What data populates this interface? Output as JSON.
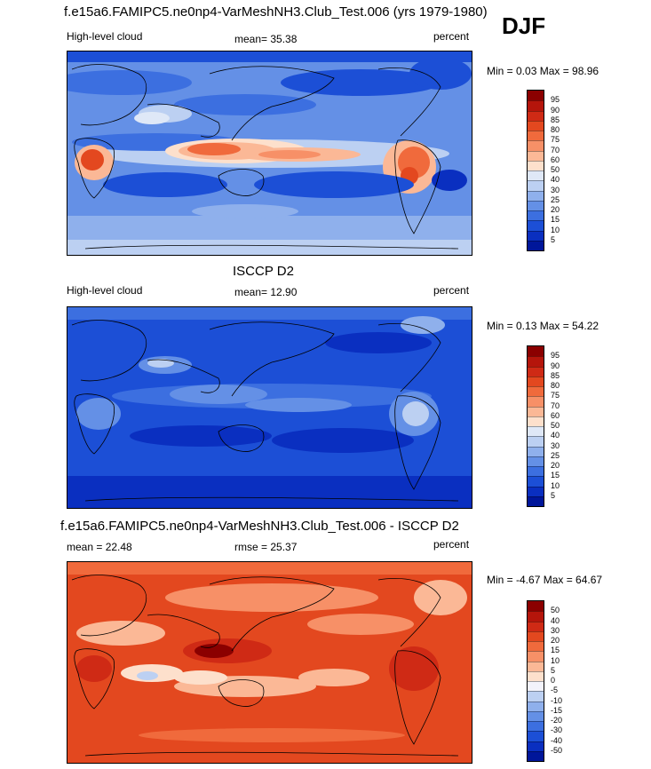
{
  "header": {
    "model_title": "f.e15a6.FAMIPC5.ne0np4-VarMeshNH3.Club_Test.006 (yrs 1979-1980)",
    "season": "DJF"
  },
  "chart_data": [
    {
      "type": "heatmap",
      "title": "f.e15a6.FAMIPC5.ne0np4-VarMeshNH3.Club_Test.006 (yrs 1979-1980)",
      "left_label": "High-level cloud",
      "center_label": "mean=  35.38",
      "right_label": "percent",
      "stats_label": "Min =   0.03 Max =  98.96",
      "mean": 35.38,
      "min": 0.03,
      "max": 98.96,
      "units": "percent",
      "colorbar_levels": [
        "95",
        "90",
        "85",
        "80",
        "75",
        "70",
        "60",
        "50",
        "40",
        "30",
        "25",
        "20",
        "15",
        "10",
        "5"
      ],
      "colorbar_colors": [
        "#8b0000",
        "#b5150b",
        "#cf2a15",
        "#e3481f",
        "#f06a3c",
        "#f79067",
        "#fbb896",
        "#fde0cc",
        "#dfe8f7",
        "#bcd0f2",
        "#8fb0ec",
        "#6490e6",
        "#3c6fe0",
        "#1c4fd6",
        "#0a2fc0",
        "#00169a"
      ],
      "field": "model high-level cloud fraction"
    },
    {
      "type": "heatmap",
      "title": "ISCCP D2",
      "left_label": "High-level cloud",
      "center_label": "mean=  12.90",
      "right_label": "percent",
      "stats_label": "Min =   0.13 Max =  54.22",
      "mean": 12.9,
      "min": 0.13,
      "max": 54.22,
      "units": "percent",
      "colorbar_levels": [
        "95",
        "90",
        "85",
        "80",
        "75",
        "70",
        "60",
        "50",
        "40",
        "30",
        "25",
        "20",
        "15",
        "10",
        "5"
      ],
      "colorbar_colors": [
        "#8b0000",
        "#b5150b",
        "#cf2a15",
        "#e3481f",
        "#f06a3c",
        "#f79067",
        "#fbb896",
        "#fde0cc",
        "#dfe8f7",
        "#bcd0f2",
        "#8fb0ec",
        "#6490e6",
        "#3c6fe0",
        "#1c4fd6",
        "#0a2fc0",
        "#00169a"
      ],
      "field": "observed high-level cloud fraction"
    },
    {
      "type": "heatmap",
      "title": "f.e15a6.FAMIPC5.ne0np4-VarMeshNH3.Club_Test.006 - ISCCP D2",
      "left_label": "mean =  22.48",
      "center_label": "rmse =  25.37",
      "right_label": "percent",
      "stats_label": "Min =  -4.67 Max =  64.67",
      "mean": 22.48,
      "rmse": 25.37,
      "min": -4.67,
      "max": 64.67,
      "units": "percent",
      "colorbar_levels": [
        "50",
        "40",
        "30",
        "20",
        "15",
        "10",
        "5",
        "0",
        "-5",
        "-10",
        "-15",
        "-20",
        "-30",
        "-40",
        "-50"
      ],
      "colorbar_colors": [
        "#8b0000",
        "#b5150b",
        "#cf2a15",
        "#e3481f",
        "#f06a3c",
        "#f79067",
        "#fbb896",
        "#fde0cc",
        "#f3f3fb",
        "#bcd0f2",
        "#8fb0ec",
        "#6490e6",
        "#3c6fe0",
        "#1c4fd6",
        "#0a2fc0",
        "#00169a"
      ],
      "field": "difference model minus observations"
    }
  ]
}
